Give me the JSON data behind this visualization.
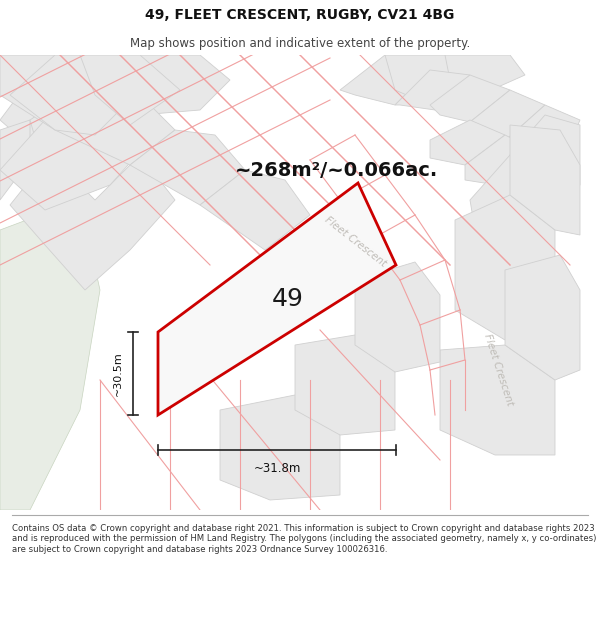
{
  "title": "49, FLEET CRESCENT, RUGBY, CV21 4BG",
  "subtitle": "Map shows position and indicative extent of the property.",
  "area_text": "~268m²/~0.066ac.",
  "plot_number": "49",
  "dim_width": "~31.8m",
  "dim_height": "~30.5m",
  "footer": "Contains OS data © Crown copyright and database right 2021. This information is subject to Crown copyright and database rights 2023 and is reproduced with the permission of HM Land Registry. The polygons (including the associated geometry, namely x, y co-ordinates) are subject to Crown copyright and database rights 2023 Ordnance Survey 100026316.",
  "map_bg": "#ffffff",
  "block_face": "#e8e8e8",
  "block_edge": "#d0d0d0",
  "thin_line_color": "#f0a0a0",
  "plot_edge_color": "#cc0000",
  "plot_face": "#f8f8f8",
  "street_color": "#c0bdb8",
  "green_area": "#e8ede5",
  "title_color": "#111111",
  "subtitle_color": "#444444",
  "footer_color": "#333333",
  "fig_width": 6.0,
  "fig_height": 6.25
}
